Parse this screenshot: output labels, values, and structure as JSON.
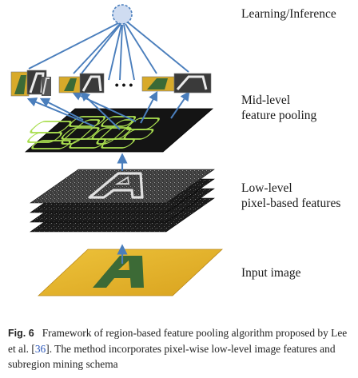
{
  "stages": {
    "learning": "Learning/Inference",
    "mid_level": "Mid-level\nfeature pooling",
    "low_level": "Low-level\npixel-based features",
    "input": "Input image"
  },
  "ellipsis": "• • •",
  "glyph": "A",
  "caption": {
    "figure_label": "Fig. 6",
    "text_before_cite": "Framework of region-based feature pooling algorithm proposed by Lee et al. [",
    "cite_number": "36",
    "text_after_cite": "]. The method incorporates pixel-wise low-level image features and subregion mining schema"
  },
  "colors": {
    "arrow_blue": "#4a7ebc",
    "node_fill": "#cfdcf1",
    "input_yellow": "#e6b32a",
    "letter_green": "#3c6a36",
    "pooling_green": "#a9de4f",
    "dark_layer": "#151515"
  }
}
